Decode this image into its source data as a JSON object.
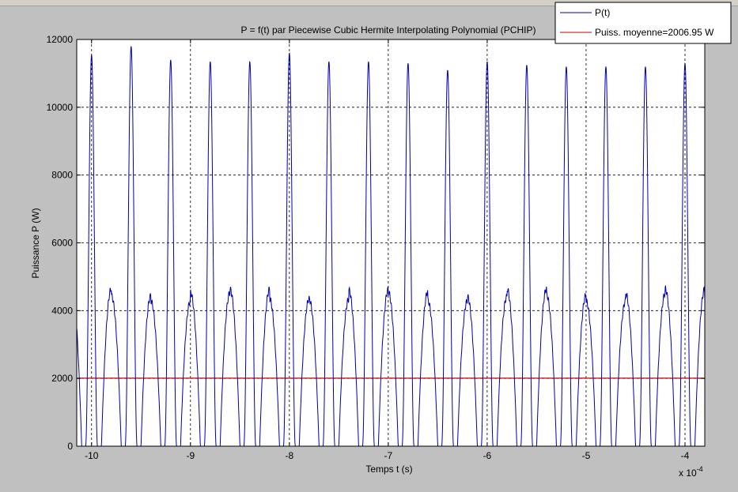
{
  "chart_data": {
    "type": "line",
    "title": "P = f(t) par Piecewise Cubic Hermite Interpolating Polynomial (PCHIP)",
    "xlabel": "Temps t (s)",
    "ylabel": "Puissance P (W)",
    "x_multiplier_label": "x 10",
    "x_multiplier_exponent": "-4",
    "xlim": [
      -10.15,
      -3.8
    ],
    "ylim": [
      0,
      12000
    ],
    "grid": true,
    "legend_position": "top-right",
    "xticks": [
      -10,
      -9,
      -8,
      -7,
      -6,
      -5,
      -4
    ],
    "xtick_labels": [
      "-10",
      "-9",
      "-8",
      "-7",
      "-6",
      "-5",
      "-4"
    ],
    "yticks": [
      0,
      2000,
      4000,
      6000,
      8000,
      10000,
      12000
    ],
    "ytick_labels": [
      "0",
      "2000",
      "4000",
      "6000",
      "8000",
      "10000",
      "12000"
    ],
    "series": [
      {
        "name": "P(t)",
        "color": "#0000aa",
        "period": 0.4,
        "first_major_peak_x": -10,
        "major_peaks": [
          11950,
          11550,
          11800,
          11400,
          11350,
          11350,
          11600,
          11350,
          11350,
          11300,
          11100,
          11350,
          11250,
          11200,
          11200,
          11200,
          11300
        ],
        "minor_peak": 4650,
        "x": [
          -10.15,
          -10.1,
          -10.05,
          -10.0,
          -9.95,
          -9.9,
          -9.85,
          -9.8,
          -9.75,
          -9.7,
          -9.65,
          -9.6,
          -9.55,
          -9.5
        ],
        "y": [
          4600,
          0,
          5500,
          11950,
          5500,
          0,
          2800,
          4700,
          2800,
          0,
          5500,
          11550,
          5500,
          0
        ]
      },
      {
        "name": "Puiss. moyenne=2006.95 W",
        "color": "#cc0000",
        "x": [
          -10.15,
          -3.8
        ],
        "y": [
          2006.95,
          2006.95
        ]
      }
    ]
  }
}
